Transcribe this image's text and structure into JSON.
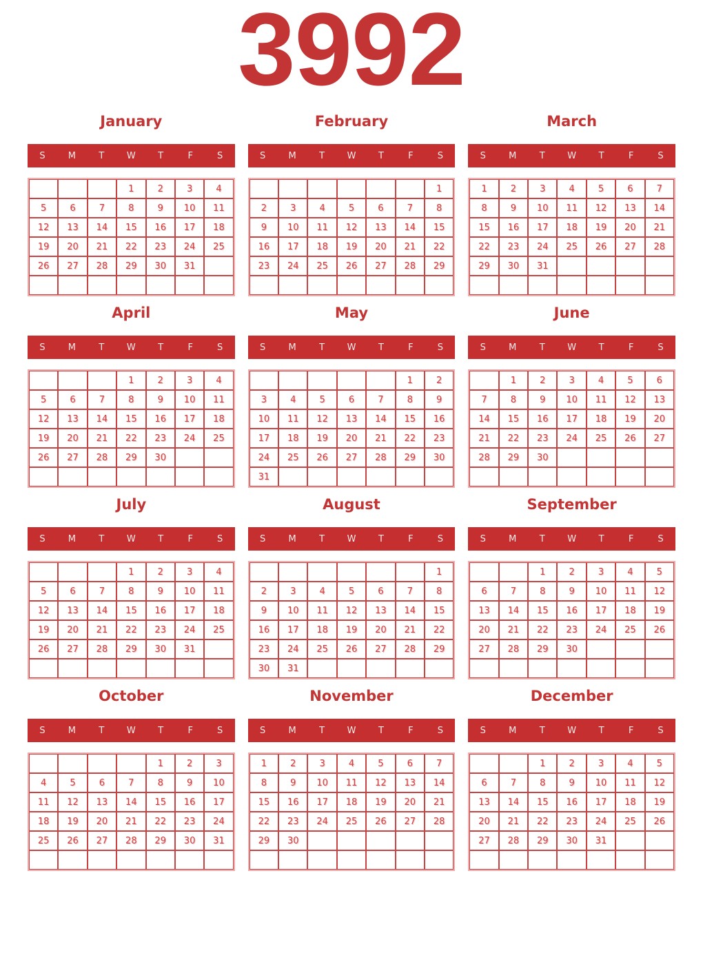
{
  "year": "3992",
  "weekdays": [
    "S",
    "M",
    "T",
    "W",
    "T",
    "F",
    "S"
  ],
  "months": [
    {
      "name": "January",
      "weeks": [
        [
          "",
          "",
          "",
          "1",
          "2",
          "3",
          "4"
        ],
        [
          "5",
          "6",
          "7",
          "8",
          "9",
          "10",
          "11"
        ],
        [
          "12",
          "13",
          "14",
          "15",
          "16",
          "17",
          "18"
        ],
        [
          "19",
          "20",
          "21",
          "22",
          "23",
          "24",
          "25"
        ],
        [
          "26",
          "27",
          "28",
          "29",
          "30",
          "31",
          ""
        ],
        [
          "",
          "",
          "",
          "",
          "",
          "",
          ""
        ]
      ]
    },
    {
      "name": "February",
      "weeks": [
        [
          "",
          "",
          "",
          "",
          "",
          "",
          "1"
        ],
        [
          "2",
          "3",
          "4",
          "5",
          "6",
          "7",
          "8"
        ],
        [
          "9",
          "10",
          "11",
          "12",
          "13",
          "14",
          "15"
        ],
        [
          "16",
          "17",
          "18",
          "19",
          "20",
          "21",
          "22"
        ],
        [
          "23",
          "24",
          "25",
          "26",
          "27",
          "28",
          "29"
        ],
        [
          "",
          "",
          "",
          "",
          "",
          "",
          ""
        ]
      ]
    },
    {
      "name": "March",
      "weeks": [
        [
          "1",
          "2",
          "3",
          "4",
          "5",
          "6",
          "7"
        ],
        [
          "8",
          "9",
          "10",
          "11",
          "12",
          "13",
          "14"
        ],
        [
          "15",
          "16",
          "17",
          "18",
          "19",
          "20",
          "21"
        ],
        [
          "22",
          "23",
          "24",
          "25",
          "26",
          "27",
          "28"
        ],
        [
          "29",
          "30",
          "31",
          "",
          "",
          "",
          ""
        ],
        [
          "",
          "",
          "",
          "",
          "",
          "",
          ""
        ]
      ]
    },
    {
      "name": "April",
      "weeks": [
        [
          "",
          "",
          "",
          "1",
          "2",
          "3",
          "4"
        ],
        [
          "5",
          "6",
          "7",
          "8",
          "9",
          "10",
          "11"
        ],
        [
          "12",
          "13",
          "14",
          "15",
          "16",
          "17",
          "18"
        ],
        [
          "19",
          "20",
          "21",
          "22",
          "23",
          "24",
          "25"
        ],
        [
          "26",
          "27",
          "28",
          "29",
          "30",
          "",
          ""
        ],
        [
          "",
          "",
          "",
          "",
          "",
          "",
          ""
        ]
      ]
    },
    {
      "name": "May",
      "weeks": [
        [
          "",
          "",
          "",
          "",
          "",
          "1",
          "2"
        ],
        [
          "3",
          "4",
          "5",
          "6",
          "7",
          "8",
          "9"
        ],
        [
          "10",
          "11",
          "12",
          "13",
          "14",
          "15",
          "16"
        ],
        [
          "17",
          "18",
          "19",
          "20",
          "21",
          "22",
          "23"
        ],
        [
          "24",
          "25",
          "26",
          "27",
          "28",
          "29",
          "30"
        ],
        [
          "31",
          "",
          "",
          "",
          "",
          "",
          ""
        ]
      ]
    },
    {
      "name": "June",
      "weeks": [
        [
          "",
          "1",
          "2",
          "3",
          "4",
          "5",
          "6"
        ],
        [
          "7",
          "8",
          "9",
          "10",
          "11",
          "12",
          "13"
        ],
        [
          "14",
          "15",
          "16",
          "17",
          "18",
          "19",
          "20"
        ],
        [
          "21",
          "22",
          "23",
          "24",
          "25",
          "26",
          "27"
        ],
        [
          "28",
          "29",
          "30",
          "",
          "",
          "",
          ""
        ],
        [
          "",
          "",
          "",
          "",
          "",
          "",
          ""
        ]
      ]
    },
    {
      "name": "July",
      "weeks": [
        [
          "",
          "",
          "",
          "1",
          "2",
          "3",
          "4"
        ],
        [
          "5",
          "6",
          "7",
          "8",
          "9",
          "10",
          "11"
        ],
        [
          "12",
          "13",
          "14",
          "15",
          "16",
          "17",
          "18"
        ],
        [
          "19",
          "20",
          "21",
          "22",
          "23",
          "24",
          "25"
        ],
        [
          "26",
          "27",
          "28",
          "29",
          "30",
          "31",
          ""
        ],
        [
          "",
          "",
          "",
          "",
          "",
          "",
          ""
        ]
      ]
    },
    {
      "name": "August",
      "weeks": [
        [
          "",
          "",
          "",
          "",
          "",
          "",
          "1"
        ],
        [
          "2",
          "3",
          "4",
          "5",
          "6",
          "7",
          "8"
        ],
        [
          "9",
          "10",
          "11",
          "12",
          "13",
          "14",
          "15"
        ],
        [
          "16",
          "17",
          "18",
          "19",
          "20",
          "21",
          "22"
        ],
        [
          "23",
          "24",
          "25",
          "26",
          "27",
          "28",
          "29"
        ],
        [
          "30",
          "31",
          "",
          "",
          "",
          "",
          ""
        ]
      ]
    },
    {
      "name": "September",
      "weeks": [
        [
          "",
          "",
          "1",
          "2",
          "3",
          "4",
          "5"
        ],
        [
          "6",
          "7",
          "8",
          "9",
          "10",
          "11",
          "12"
        ],
        [
          "13",
          "14",
          "15",
          "16",
          "17",
          "18",
          "19"
        ],
        [
          "20",
          "21",
          "22",
          "23",
          "24",
          "25",
          "26"
        ],
        [
          "27",
          "28",
          "29",
          "30",
          "",
          "",
          ""
        ],
        [
          "",
          "",
          "",
          "",
          "",
          "",
          ""
        ]
      ]
    },
    {
      "name": "October",
      "weeks": [
        [
          "",
          "",
          "",
          "",
          "1",
          "2",
          "3"
        ],
        [
          "4",
          "5",
          "6",
          "7",
          "8",
          "9",
          "10"
        ],
        [
          "11",
          "12",
          "13",
          "14",
          "15",
          "16",
          "17"
        ],
        [
          "18",
          "19",
          "20",
          "21",
          "22",
          "23",
          "24"
        ],
        [
          "25",
          "26",
          "27",
          "28",
          "29",
          "30",
          "31"
        ],
        [
          "",
          "",
          "",
          "",
          "",
          "",
          ""
        ]
      ]
    },
    {
      "name": "November",
      "weeks": [
        [
          "1",
          "2",
          "3",
          "4",
          "5",
          "6",
          "7"
        ],
        [
          "8",
          "9",
          "10",
          "11",
          "12",
          "13",
          "14"
        ],
        [
          "15",
          "16",
          "17",
          "18",
          "19",
          "20",
          "21"
        ],
        [
          "22",
          "23",
          "24",
          "25",
          "26",
          "27",
          "28"
        ],
        [
          "29",
          "30",
          "",
          "",
          "",
          "",
          ""
        ],
        [
          "",
          "",
          "",
          "",
          "",
          "",
          ""
        ]
      ]
    },
    {
      "name": "December",
      "weeks": [
        [
          "",
          "",
          "1",
          "2",
          "3",
          "4",
          "5"
        ],
        [
          "6",
          "7",
          "8",
          "9",
          "10",
          "11",
          "12"
        ],
        [
          "13",
          "14",
          "15",
          "16",
          "17",
          "18",
          "19"
        ],
        [
          "20",
          "21",
          "22",
          "23",
          "24",
          "25",
          "26"
        ],
        [
          "27",
          "28",
          "29",
          "30",
          "31",
          "",
          ""
        ],
        [
          "",
          "",
          "",
          "",
          "",
          "",
          ""
        ]
      ]
    }
  ],
  "colors": {
    "primary_red": "#c62f2f",
    "title_red": "#c33434",
    "number_red": "#cc4141",
    "grid_line_red": "#c94343",
    "outer_border_pink": "#efacac",
    "number_shadow_pink": "#f3bdbd",
    "weekday_letter": "#f6eaea"
  }
}
